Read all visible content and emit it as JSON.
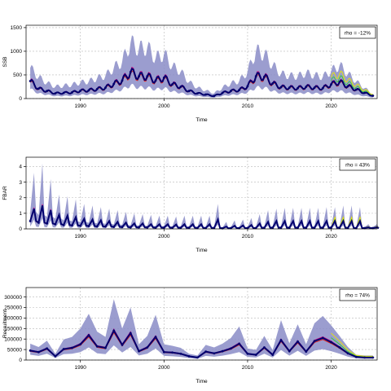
{
  "colors": {
    "band": "#8a8cc7",
    "median": "#00006e",
    "trace_magenta": "#c8007a",
    "trace_red": "#e0201a",
    "trace_green": "#33cc33",
    "trace_yellow": "#e8e800",
    "trace_cyan": "#22aacc",
    "grid": "#b8b8b8"
  },
  "chart_data": [
    {
      "type": "area",
      "title": "",
      "xlabel": "Time",
      "ylabel": "SSB",
      "legend": "rho = -12%",
      "legend_position": "top-right",
      "xlim": [
        1983.5,
        2025.5
      ],
      "ylim": [
        0,
        1550
      ],
      "xticks": [
        1990,
        2000,
        2010,
        2020
      ],
      "yticks": [
        0,
        500,
        1000,
        1500
      ],
      "grid": true,
      "x": [
        1984,
        1985,
        1986,
        1987,
        1988,
        1989,
        1990,
        1991,
        1992,
        1993,
        1994,
        1995,
        1996,
        1997,
        1998,
        1999,
        2000,
        2001,
        2002,
        2003,
        2004,
        2005,
        2006,
        2007,
        2008,
        2009,
        2010,
        2011,
        2012,
        2013,
        2014,
        2015,
        2016,
        2017,
        2018,
        2019,
        2020,
        2021,
        2022,
        2023,
        2024,
        2025
      ],
      "series": [
        {
          "role": "median",
          "values": [
            370,
            210,
            160,
            110,
            120,
            130,
            165,
            175,
            200,
            230,
            310,
            380,
            560,
            470,
            470,
            380,
            440,
            300,
            250,
            160,
            110,
            85,
            55,
            120,
            160,
            180,
            260,
            470,
            460,
            320,
            240,
            230,
            220,
            250,
            230,
            220,
            300,
            350,
            260,
            190,
            120,
            60
          ]
        },
        {
          "role": "upper",
          "values": [
            650,
            450,
            330,
            250,
            270,
            290,
            340,
            360,
            430,
            480,
            650,
            780,
            1180,
            1050,
            1080,
            850,
            940,
            680,
            570,
            350,
            230,
            170,
            110,
            230,
            320,
            370,
            570,
            1000,
            940,
            700,
            520,
            480,
            470,
            540,
            490,
            460,
            580,
            700,
            520,
            360,
            220,
            100
          ]
        },
        {
          "role": "lower",
          "values": [
            200,
            110,
            80,
            50,
            55,
            60,
            80,
            85,
            100,
            110,
            150,
            190,
            280,
            230,
            230,
            190,
            220,
            150,
            120,
            75,
            50,
            35,
            20,
            55,
            75,
            90,
            130,
            230,
            230,
            160,
            115,
            110,
            105,
            120,
            110,
            100,
            150,
            160,
            120,
            80,
            50,
            25
          ]
        }
      ]
    },
    {
      "type": "area",
      "title": "",
      "xlabel": "Time",
      "ylabel": "FBAR",
      "legend": "rho = 43%",
      "legend_position": "top-right",
      "xlim": [
        1983.5,
        2025.5
      ],
      "ylim": [
        0,
        4.6
      ],
      "xticks": [
        1990,
        2000,
        2010,
        2020
      ],
      "yticks": [
        0,
        1,
        2,
        3,
        4
      ],
      "grid": true,
      "x": [
        1984,
        1985,
        1986,
        1987,
        1988,
        1989,
        1990,
        1991,
        1992,
        1993,
        1994,
        1995,
        1996,
        1997,
        1998,
        1999,
        2000,
        2001,
        2002,
        2003,
        2004,
        2005,
        2006,
        2007,
        2008,
        2009,
        2010,
        2011,
        2012,
        2013,
        2014,
        2015,
        2016,
        2017,
        2018,
        2019,
        2020,
        2021,
        2022,
        2023,
        2024,
        2025
      ],
      "series": [
        {
          "role": "median_peaks",
          "values": [
            1.3,
            1.5,
            1.2,
            0.9,
            0.85,
            0.75,
            0.65,
            0.6,
            0.55,
            0.5,
            0.45,
            0.4,
            0.35,
            0.35,
            0.3,
            0.3,
            0.3,
            0.28,
            0.3,
            0.3,
            0.3,
            0.3,
            0.6,
            0.15,
            0.2,
            0.22,
            0.25,
            0.35,
            0.45,
            0.5,
            0.5,
            0.5,
            0.5,
            0.5,
            0.5,
            0.5,
            0.5,
            0.5,
            0.5,
            0.5,
            0.1,
            0.1
          ]
        },
        {
          "role": "upper_peaks",
          "values": [
            3.6,
            4.2,
            3.2,
            2.2,
            2.1,
            1.9,
            1.6,
            1.5,
            1.4,
            1.3,
            1.2,
            1.1,
            1.0,
            0.95,
            0.9,
            0.85,
            0.85,
            0.8,
            0.85,
            0.85,
            0.85,
            0.85,
            1.6,
            0.45,
            0.55,
            0.6,
            0.7,
            0.95,
            1.2,
            1.3,
            1.35,
            1.35,
            1.35,
            1.35,
            1.35,
            1.4,
            1.4,
            1.5,
            1.5,
            1.4,
            0.3,
            0.3
          ]
        },
        {
          "role": "median_troughs",
          "values": [
            0.5,
            0.4,
            0.35,
            0.3,
            0.25,
            0.22,
            0.2,
            0.18,
            0.16,
            0.15,
            0.13,
            0.12,
            0.1,
            0.1,
            0.09,
            0.08,
            0.08,
            0.07,
            0.07,
            0.07,
            0.06,
            0.06,
            0.06,
            0.04,
            0.05,
            0.05,
            0.05,
            0.06,
            0.07,
            0.07,
            0.07,
            0.07,
            0.07,
            0.07,
            0.07,
            0.07,
            0.07,
            0.07,
            0.06,
            0.05,
            0.05,
            0.05
          ]
        }
      ]
    },
    {
      "type": "area",
      "title": "",
      "xlabel": "Time",
      "ylabel": "Recruitment",
      "legend": "rho = 74%",
      "legend_position": "top-right",
      "xlim": [
        1983.5,
        2025.5
      ],
      "ylim": [
        0,
        345000
      ],
      "xticks": [
        1990,
        2000,
        2010,
        2020
      ],
      "yticks": [
        0,
        50000,
        100000,
        150000,
        200000,
        250000,
        300000
      ],
      "ytick_labels": [
        "0",
        "50000",
        "100000",
        "150000",
        "200000",
        "250000",
        "300000"
      ],
      "grid": true,
      "x": [
        1984,
        1985,
        1986,
        1987,
        1988,
        1989,
        1990,
        1991,
        1992,
        1993,
        1994,
        1995,
        1996,
        1997,
        1998,
        1999,
        2000,
        2001,
        2002,
        2003,
        2004,
        2005,
        2006,
        2007,
        2008,
        2009,
        2010,
        2011,
        2012,
        2013,
        2014,
        2015,
        2016,
        2017,
        2018,
        2019,
        2020,
        2021,
        2022,
        2023,
        2024,
        2025
      ],
      "series": [
        {
          "role": "median",
          "values": [
            45000,
            38000,
            55000,
            18000,
            52000,
            58000,
            75000,
            118000,
            65000,
            58000,
            140000,
            72000,
            128000,
            42000,
            60000,
            110000,
            38000,
            36000,
            30000,
            18000,
            12000,
            40000,
            32000,
            42000,
            55000,
            78000,
            30000,
            25000,
            60000,
            25000,
            95000,
            42000,
            88000,
            40000,
            90000,
            105000,
            85000,
            60000,
            32000,
            15000,
            12000,
            12000
          ]
        },
        {
          "role": "upper",
          "values": [
            78000,
            62000,
            92000,
            30000,
            98000,
            110000,
            150000,
            220000,
            135000,
            110000,
            290000,
            150000,
            250000,
            75000,
            115000,
            215000,
            75000,
            68000,
            58000,
            30000,
            22000,
            72000,
            60000,
            78000,
            105000,
            160000,
            55000,
            48000,
            115000,
            48000,
            190000,
            80000,
            170000,
            75000,
            175000,
            210000,
            165000,
            115000,
            62000,
            25000,
            22000,
            22000
          ]
        },
        {
          "role": "lower",
          "values": [
            25000,
            20000,
            30000,
            10000,
            28000,
            30000,
            38000,
            60000,
            32000,
            28000,
            70000,
            36000,
            62000,
            22000,
            30000,
            55000,
            20000,
            18000,
            15000,
            9000,
            6000,
            20000,
            16000,
            21000,
            28000,
            38000,
            15000,
            12000,
            30000,
            12000,
            48000,
            21000,
            44000,
            20000,
            45000,
            52000,
            42000,
            30000,
            16000,
            8000,
            6000,
            6000
          ]
        }
      ]
    }
  ]
}
